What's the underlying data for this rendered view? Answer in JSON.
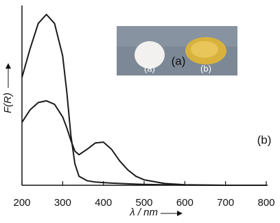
{
  "chart_data": {
    "type": "line",
    "x_label": "λ / nm",
    "y_label": "F(R)",
    "xlim": [
      200,
      800
    ],
    "xticks": [
      200,
      300,
      400,
      500,
      600,
      700,
      800
    ],
    "ylim": [
      0,
      100
    ],
    "x": [
      200,
      220,
      240,
      260,
      280,
      300,
      310,
      320,
      330,
      340,
      360,
      380,
      400,
      420,
      440,
      460,
      480,
      500,
      550,
      600,
      700,
      800
    ],
    "series": [
      {
        "name": "(a)",
        "color": "#1a1a1a",
        "values": [
          60,
          76,
          90,
          95,
          90,
          72,
          52,
          28,
          12,
          5,
          2.5,
          1.8,
          1.5,
          1.2,
          1,
          0.8,
          0.6,
          0.5,
          0.3,
          0.1,
          0,
          0
        ]
      },
      {
        "name": "(b)",
        "color": "#1a1a1a",
        "values": [
          35,
          42,
          46,
          47,
          45,
          38,
          32,
          25,
          19,
          17,
          20,
          23.5,
          24,
          20,
          13.5,
          8.5,
          5,
          3,
          1,
          0.3,
          0,
          0
        ]
      }
    ]
  }
}
